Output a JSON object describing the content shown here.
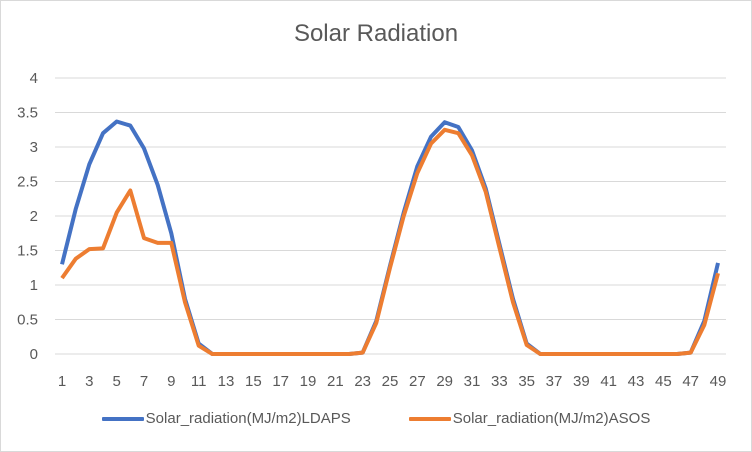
{
  "chart_data": {
    "type": "line",
    "title": "Solar Radiation",
    "xlabel": "",
    "ylabel": "",
    "x": [
      1,
      2,
      3,
      4,
      5,
      6,
      7,
      8,
      9,
      10,
      11,
      12,
      13,
      14,
      15,
      16,
      17,
      18,
      19,
      20,
      21,
      22,
      23,
      24,
      25,
      26,
      27,
      28,
      29,
      30,
      31,
      32,
      33,
      34,
      35,
      36,
      37,
      38,
      39,
      40,
      41,
      42,
      43,
      44,
      45,
      46,
      47,
      48,
      49
    ],
    "x_tick_labels": [
      "1",
      "3",
      "5",
      "7",
      "9",
      "11",
      "13",
      "15",
      "17",
      "19",
      "21",
      "23",
      "25",
      "27",
      "29",
      "31",
      "33",
      "35",
      "37",
      "39",
      "41",
      "43",
      "45",
      "47",
      "49"
    ],
    "y_tick_labels": [
      "0",
      "0.5",
      "1",
      "1.5",
      "2",
      "2.5",
      "3",
      "3.5",
      "4"
    ],
    "ylim": [
      0,
      4
    ],
    "grid": true,
    "legend_position": "bottom",
    "series": [
      {
        "name": "Solar_radiation(MJ/m2)LDAPS",
        "color": "#4472c4",
        "values": [
          1.3,
          2.1,
          2.75,
          3.2,
          3.37,
          3.31,
          2.98,
          2.45,
          1.75,
          0.8,
          0.15,
          0.0,
          0,
          0,
          0,
          0,
          0,
          0,
          0,
          0,
          0,
          0,
          0.02,
          0.48,
          1.28,
          2.05,
          2.72,
          3.15,
          3.36,
          3.29,
          2.95,
          2.4,
          1.6,
          0.8,
          0.15,
          0,
          0,
          0,
          0,
          0,
          0,
          0,
          0,
          0,
          0,
          0,
          0.02,
          0.48,
          1.32
        ]
      },
      {
        "name": "Solar_radiation(MJ/m2)ASOS",
        "color": "#ed7d31",
        "values": [
          1.1,
          1.38,
          1.52,
          1.53,
          2.05,
          2.37,
          1.68,
          1.61,
          1.61,
          0.75,
          0.12,
          0.0,
          0,
          0,
          0,
          0,
          0,
          0,
          0,
          0,
          0,
          0,
          0.02,
          0.45,
          1.25,
          2.0,
          2.62,
          3.05,
          3.25,
          3.2,
          2.88,
          2.35,
          1.55,
          0.75,
          0.13,
          0,
          0,
          0,
          0,
          0,
          0,
          0,
          0,
          0,
          0,
          0,
          0.02,
          0.42,
          1.17
        ]
      }
    ]
  }
}
